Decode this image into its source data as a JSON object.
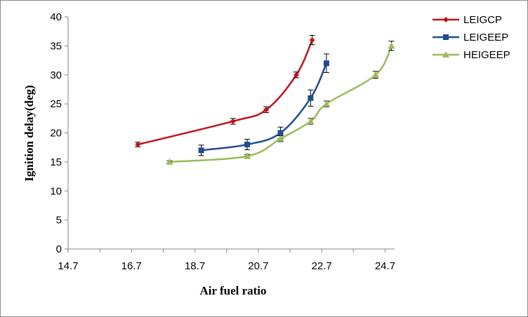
{
  "chart_data": {
    "type": "line",
    "title": "",
    "xlabel": "Air fuel ratio",
    "ylabel": "Ignition delay(deg)",
    "xlim": [
      14.7,
      25.0
    ],
    "ylim": [
      0,
      40
    ],
    "x_ticks": [
      "14.7",
      "16.7",
      "18.7",
      "20.7",
      "22.7",
      "24.7"
    ],
    "y_ticks": [
      "0",
      "5",
      "10",
      "15",
      "20",
      "25",
      "30",
      "35",
      "40"
    ],
    "grid": false,
    "legend_position": "top-right",
    "series": [
      {
        "name": "LEIGCP",
        "color": "#c0141c",
        "marker": "diamond",
        "points": [
          {
            "x": 16.9,
            "y": 18,
            "err": 0.4
          },
          {
            "x": 19.9,
            "y": 22,
            "err": 0.5
          },
          {
            "x": 20.95,
            "y": 24,
            "err": 0.5
          },
          {
            "x": 21.9,
            "y": 30,
            "err": 0.5
          },
          {
            "x": 22.4,
            "y": 36,
            "err": 0.8
          }
        ]
      },
      {
        "name": "LEIGEEP",
        "color": "#1f4e8c",
        "marker": "square",
        "points": [
          {
            "x": 18.9,
            "y": 17,
            "err": 0.9
          },
          {
            "x": 20.35,
            "y": 18,
            "err": 0.9
          },
          {
            "x": 21.4,
            "y": 20,
            "err": 1.0
          },
          {
            "x": 22.35,
            "y": 26,
            "err": 1.4
          },
          {
            "x": 22.85,
            "y": 32,
            "err": 1.6
          }
        ]
      },
      {
        "name": "HEIGEEP",
        "color": "#9bbb59",
        "marker": "triangle",
        "points": [
          {
            "x": 17.9,
            "y": 15,
            "err": 0.2
          },
          {
            "x": 20.35,
            "y": 16,
            "err": 0.3
          },
          {
            "x": 21.4,
            "y": 19,
            "err": 0.5
          },
          {
            "x": 22.35,
            "y": 22,
            "err": 0.5
          },
          {
            "x": 22.85,
            "y": 25,
            "err": 0.5
          },
          {
            "x": 24.4,
            "y": 30,
            "err": 0.6
          },
          {
            "x": 24.9,
            "y": 35,
            "err": 0.8
          }
        ]
      }
    ]
  }
}
